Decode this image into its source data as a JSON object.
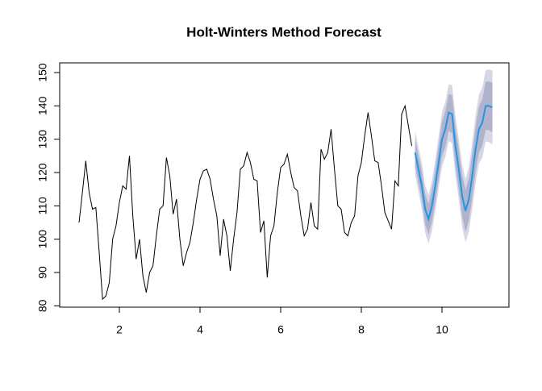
{
  "chart_data": {
    "type": "line",
    "title": "Holt-Winters Method Forecast",
    "xlim": [
      0.52,
      11.66
    ],
    "ylim": [
      79.6,
      152.9
    ],
    "xticks": [
      2,
      4,
      6,
      8,
      10
    ],
    "yticks": [
      80,
      90,
      100,
      110,
      120,
      130,
      140,
      150
    ],
    "bands": [
      {
        "color": "#d6d6e4",
        "x": [
          9.3333,
          9.4167,
          9.5,
          9.5833,
          9.6667,
          9.75,
          9.8333,
          9.9167,
          10,
          10.0833,
          10.1667,
          10.25,
          10.3333,
          10.4167,
          10.5,
          10.5833,
          10.6667,
          10.75,
          10.8333,
          10.9167,
          11,
          11.0833,
          11.1667,
          11.25
        ],
        "lower": [
          119.5,
          114.3,
          109.1,
          101.9,
          98.7,
          102.5,
          108.3,
          115.1,
          121.9,
          124.7,
          129.5,
          128.8,
          119.1,
          111.9,
          103.7,
          99,
          102.3,
          109.1,
          116.9,
          122.7,
          124.5,
          129.3,
          129.1,
          128.4
        ],
        "upper": [
          132.5,
          127.7,
          122.9,
          116.1,
          113.3,
          117.5,
          123.7,
          130.9,
          138.1,
          141.3,
          146.5,
          146.2,
          136.9,
          130.1,
          122.3,
          118,
          121.7,
          128.9,
          137.1,
          143.3,
          145.5,
          150.7,
          150.9,
          150.6
        ]
      },
      {
        "color": "#b0b3cc",
        "x": [
          9.3333,
          9.4167,
          9.5,
          9.5833,
          9.6667,
          9.75,
          9.8333,
          9.9167,
          10,
          10.0833,
          10.1667,
          10.25,
          10.3333,
          10.4167,
          10.5,
          10.5833,
          10.6667,
          10.75,
          10.8333,
          10.9167,
          11,
          11.0833,
          11.1667,
          11.25
        ],
        "lower": [
          122,
          116.8,
          111.7,
          104.5,
          101.4,
          105.2,
          111.1,
          117.9,
          124.8,
          127.6,
          132.5,
          131.8,
          122.2,
          115,
          106.9,
          102.2,
          105.6,
          112.4,
          120.3,
          126.1,
          128,
          132.8,
          132.7,
          132
        ],
        "upper": [
          130,
          125.2,
          120.3,
          113.5,
          110.6,
          114.8,
          120.9,
          128.1,
          135.2,
          138.4,
          143.5,
          143.2,
          133.8,
          127,
          119.1,
          114.8,
          118.4,
          125.6,
          133.7,
          139.9,
          142,
          147.2,
          147.3,
          147
        ]
      }
    ],
    "series": [
      {
        "color": "#000000",
        "x": [
          1,
          1.0833,
          1.1667,
          1.25,
          1.3333,
          1.4167,
          1.5,
          1.5833,
          1.6667,
          1.75,
          1.8333,
          1.9167,
          2,
          2.0833,
          2.1667,
          2.25,
          2.3333,
          2.4167,
          2.5,
          2.5833,
          2.6667,
          2.75,
          2.8333,
          2.9167,
          3,
          3.0833,
          3.1667,
          3.25,
          3.3333,
          3.4167,
          3.5,
          3.5833,
          3.6667,
          3.75,
          3.8333,
          3.9167,
          4,
          4.0833,
          4.1667,
          4.25,
          4.3333,
          4.4167,
          4.5,
          4.5833,
          4.6667,
          4.75,
          4.8333,
          4.9167,
          5,
          5.0833,
          5.1667,
          5.25,
          5.3333,
          5.4167,
          5.5,
          5.5833,
          5.6667,
          5.75,
          5.8333,
          5.9167,
          6,
          6.0833,
          6.1667,
          6.25,
          6.3333,
          6.4167,
          6.5,
          6.5833,
          6.6667,
          6.75,
          6.8333,
          6.9167,
          7,
          7.0833,
          7.1667,
          7.25,
          7.3333,
          7.4167,
          7.5,
          7.5833,
          7.6667,
          7.75,
          7.8333,
          7.9167,
          8,
          8.0833,
          8.1667,
          8.25,
          8.3333,
          8.4167,
          8.5,
          8.5833,
          8.6667,
          8.75,
          8.8333,
          8.9167,
          9,
          9.0833,
          9.1667,
          9.25
        ],
        "values": [
          105,
          114,
          123.5,
          114,
          109,
          109.5,
          96,
          82,
          83,
          87,
          100,
          104,
          111,
          116,
          115,
          125,
          107,
          94,
          100,
          89,
          84,
          90,
          92,
          101,
          109,
          110,
          124.5,
          119,
          107.5,
          112,
          100,
          92,
          96,
          99,
          105,
          112,
          118,
          120.5,
          121,
          118,
          112,
          107,
          95,
          106,
          101,
          90.5,
          100,
          108,
          121,
          122,
          126,
          123,
          118,
          117.5,
          102,
          105.5,
          88.5,
          101,
          104,
          114,
          121.5,
          122.5,
          125.5,
          120,
          115.5,
          114.5,
          107,
          101,
          103,
          111,
          104,
          103,
          127,
          124,
          126,
          133,
          121,
          110,
          109,
          102,
          101,
          105,
          107,
          119,
          123,
          131,
          138,
          131,
          123.5,
          123,
          116,
          108,
          105.5,
          103,
          117.5,
          116,
          137.5,
          140,
          134,
          128
        ]
      },
      {
        "color": "#2196e8",
        "x": [
          9.3333,
          9.4167,
          9.5,
          9.5833,
          9.6667,
          9.75,
          9.8333,
          9.9167,
          10,
          10.0833,
          10.1667,
          10.25,
          10.3333,
          10.4167,
          10.5,
          10.5833,
          10.6667,
          10.75,
          10.8333,
          10.9167,
          11,
          11.0833,
          11.1667,
          11.25
        ],
        "values": [
          126,
          121,
          116,
          109,
          106,
          110,
          116,
          123,
          130,
          133,
          138,
          137.5,
          128,
          121,
          113,
          108.5,
          112,
          119,
          127,
          133,
          135,
          140,
          140,
          139.5
        ]
      }
    ]
  }
}
